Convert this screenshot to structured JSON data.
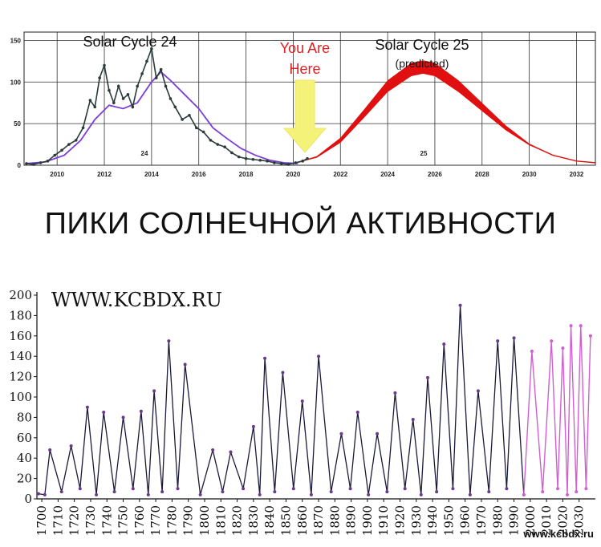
{
  "heading": "ПИКИ СОЛНЕЧНОЙ АКТИВНОСТИ",
  "colors": {
    "cycle24": "#2b3a3a",
    "smooth": "#7b3fd6",
    "predicted": "#e01010",
    "arrow": "#f5f27a",
    "you_are_here": "#e02020",
    "bottom_line": "#1a1a3a",
    "bottom_fade": "#d060d0"
  },
  "chart_data": [
    {
      "type": "line",
      "title": "Solar Cycle 24",
      "title2": "Solar Cycle 25",
      "subtitle2": "(predicted)",
      "annotation": "You Are Here",
      "annotation_lines": [
        "You Are",
        "Here"
      ],
      "cycle_labels": [
        "24",
        "25"
      ],
      "xlim": [
        2008.6,
        2032.8
      ],
      "ylim": [
        0,
        160
      ],
      "xticks": [
        "2010",
        "2012",
        "2014",
        "2016",
        "2018",
        "2020",
        "2022",
        "2024",
        "2026",
        "2028",
        "2030",
        "2032"
      ],
      "yticks": [
        "0",
        "50",
        "100",
        "150"
      ],
      "grid": true,
      "series": [
        {
          "x": [
            2008.7,
            2009.0,
            2009.3,
            2009.6,
            2009.9,
            2010.2,
            2010.5,
            2010.8,
            2011.1,
            2011.4,
            2011.6,
            2011.8,
            2012.0,
            2012.2,
            2012.4,
            2012.6,
            2012.8,
            2013.0,
            2013.2,
            2013.4,
            2013.6,
            2013.8,
            2014.0,
            2014.2,
            2014.4,
            2014.6,
            2014.8,
            2015.0,
            2015.3,
            2015.6,
            2015.9,
            2016.2,
            2016.5,
            2016.8,
            2017.1,
            2017.4,
            2017.7,
            2018.0,
            2018.3,
            2018.6,
            2018.9,
            2019.2,
            2019.5,
            2019.8,
            2020.1,
            2020.4,
            2020.6
          ],
          "values": [
            2,
            1,
            3,
            5,
            12,
            18,
            25,
            30,
            45,
            78,
            70,
            105,
            120,
            90,
            75,
            95,
            80,
            85,
            70,
            95,
            110,
            125,
            140,
            105,
            115,
            95,
            80,
            70,
            55,
            60,
            45,
            40,
            30,
            25,
            22,
            15,
            10,
            8,
            7,
            6,
            5,
            3,
            2,
            1,
            3,
            5,
            8
          ]
        },
        {
          "x": [
            2008.7,
            2009.5,
            2010.3,
            2011.0,
            2011.6,
            2012.2,
            2012.8,
            2013.4,
            2014.0,
            2014.4,
            2014.8,
            2015.4,
            2016.0,
            2016.6,
            2017.2,
            2017.8,
            2018.4,
            2019.0,
            2019.6,
            2020.2
          ],
          "values": [
            2,
            4,
            12,
            30,
            55,
            72,
            68,
            75,
            100,
            112,
            102,
            85,
            68,
            45,
            32,
            20,
            12,
            6,
            3,
            2
          ]
        },
        {
          "x": [
            2020.0,
            2021.0,
            2022.0,
            2023.0,
            2024.0,
            2025.0,
            2025.5,
            2026.0,
            2027.0,
            2028.0,
            2029.0,
            2030.0,
            2031.0,
            2032.0,
            2032.8
          ],
          "values": [
            2,
            10,
            30,
            62,
            95,
            115,
            118,
            115,
            95,
            70,
            45,
            25,
            12,
            5,
            3
          ],
          "band": [
            0,
            1,
            3,
            5,
            7,
            8,
            8,
            8,
            7,
            5,
            3,
            1,
            0,
            0,
            0
          ]
        }
      ]
    },
    {
      "type": "line",
      "title": "WWW.KCBDX.RU",
      "watermark": "www.kcbdx.ru",
      "xlim": [
        1697,
        2040
      ],
      "ylim": [
        0,
        200
      ],
      "yticks": [
        "0",
        "20",
        "40",
        "60",
        "80",
        "100",
        "120",
        "140",
        "160",
        "180",
        "200"
      ],
      "xticks": [
        "1700",
        "1710",
        "1720",
        "1730",
        "1740",
        "1750",
        "1760",
        "1770",
        "1780",
        "1790",
        "1800",
        "1810",
        "1820",
        "1830",
        "1840",
        "1850",
        "1860",
        "1870",
        "1880",
        "1890",
        "1900",
        "1910",
        "1920",
        "1930",
        "1940",
        "1950",
        "1960",
        "1970",
        "1980",
        "1990",
        "2000",
        "2010",
        "2020",
        "2030"
      ],
      "cycles": [
        {
          "year": 1698,
          "peak": 5
        },
        {
          "year": 1705,
          "peak": 48
        },
        {
          "year": 1718,
          "peak": 52
        },
        {
          "year": 1728,
          "peak": 90
        },
        {
          "year": 1738,
          "peak": 85
        },
        {
          "year": 1750,
          "peak": 80
        },
        {
          "year": 1761,
          "peak": 86
        },
        {
          "year": 1769,
          "peak": 106
        },
        {
          "year": 1778,
          "peak": 155
        },
        {
          "year": 1788,
          "peak": 132
        },
        {
          "year": 1805,
          "peak": 48
        },
        {
          "year": 1816,
          "peak": 46
        },
        {
          "year": 1830,
          "peak": 71
        },
        {
          "year": 1837,
          "peak": 138
        },
        {
          "year": 1848,
          "peak": 124
        },
        {
          "year": 1860,
          "peak": 96
        },
        {
          "year": 1870,
          "peak": 140
        },
        {
          "year": 1884,
          "peak": 64
        },
        {
          "year": 1894,
          "peak": 85
        },
        {
          "year": 1906,
          "peak": 64
        },
        {
          "year": 1917,
          "peak": 104
        },
        {
          "year": 1928,
          "peak": 78
        },
        {
          "year": 1937,
          "peak": 119
        },
        {
          "year": 1947,
          "peak": 152
        },
        {
          "year": 1957,
          "peak": 190
        },
        {
          "year": 1968,
          "peak": 106
        },
        {
          "year": 1980,
          "peak": 155
        },
        {
          "year": 1990,
          "peak": 158
        },
        {
          "year": 2001,
          "peak": 145
        },
        {
          "year": 2013,
          "peak": 155
        },
        {
          "year": 2020,
          "peak": 148
        },
        {
          "year": 2025,
          "peak": 170
        },
        {
          "year": 2031,
          "peak": 170
        },
        {
          "year": 2037,
          "peak": 160
        }
      ]
    }
  ]
}
